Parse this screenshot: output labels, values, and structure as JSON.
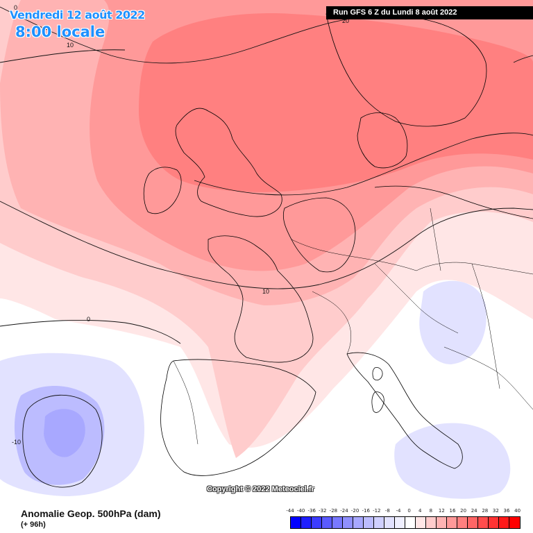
{
  "header": {
    "date_label": "Vendredi 12 août 2022",
    "time_label": "8:00 locale",
    "run_label": "Run GFS 6 Z du Lundi 8 août 2022"
  },
  "map": {
    "copyright": "Copyright © 2022 Meteociel.fr",
    "contour_labels": [
      "0",
      "10",
      "20",
      "10",
      "0",
      "-10"
    ]
  },
  "footer": {
    "variable": "Anomalie Geop. 500hPa (dam)",
    "lead_time": "(+ 96h)"
  },
  "legend": {
    "ticks": [
      "-44",
      "-40",
      "-36",
      "-32",
      "-28",
      "-24",
      "-20",
      "-16",
      "-12",
      "-8",
      "-4",
      "0",
      "4",
      "8",
      "12",
      "16",
      "20",
      "24",
      "28",
      "32",
      "36",
      "40"
    ],
    "colors": [
      "#0000ff",
      "#1e1eff",
      "#3c3cff",
      "#5a5aff",
      "#7878ff",
      "#9090ff",
      "#a8a8ff",
      "#bcbcff",
      "#d0d0ff",
      "#e2e2ff",
      "#f0f0ff",
      "#ffffff",
      "#ffe6e6",
      "#ffcccc",
      "#ffb3b3",
      "#ff9999",
      "#ff8080",
      "#ff6666",
      "#ff4d4d",
      "#ff3333",
      "#ff1a1a",
      "#ff0000"
    ]
  }
}
